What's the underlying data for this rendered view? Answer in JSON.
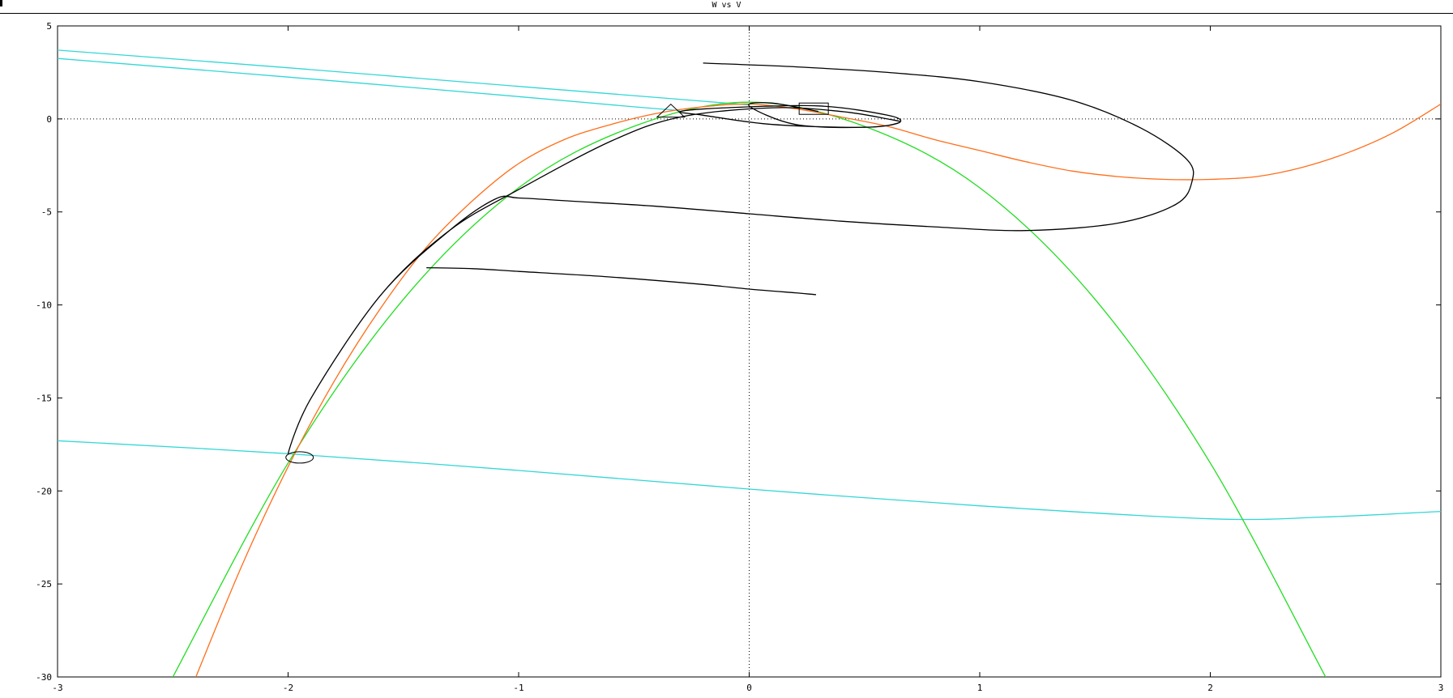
{
  "window": {
    "title": "W vs V"
  },
  "chart_data": {
    "type": "line",
    "title": "W vs V",
    "xlabel": "",
    "ylabel": "",
    "xlim": [
      -3,
      3
    ],
    "ylim": [
      -30,
      5
    ],
    "xticks": [
      -3,
      -2,
      -1,
      0,
      1,
      2,
      3
    ],
    "yticks": [
      5,
      0,
      -5,
      -10,
      -15,
      -20,
      -25,
      -30
    ],
    "grid": false,
    "zero_lines": true,
    "series": [
      {
        "color": "#33d6d6",
        "style": "line",
        "x": [
          -3,
          -2,
          -1,
          -0.5,
          -0.2,
          0.0
        ],
        "y": [
          3.7,
          2.75,
          1.75,
          1.25,
          0.95,
          0.75
        ]
      },
      {
        "color": "#33d6d6",
        "style": "line",
        "x": [
          -3,
          -2,
          -1,
          -0.5,
          -0.3
        ],
        "y": [
          3.25,
          2.25,
          1.2,
          0.65,
          0.45
        ]
      },
      {
        "color": "#33d6d6",
        "style": "line",
        "x": [
          -3,
          -2,
          -1,
          0,
          1,
          2,
          2.5,
          3
        ],
        "y": [
          -17.3,
          -18.0,
          -18.9,
          -19.9,
          -20.8,
          -21.5,
          -21.4,
          -21.1
        ]
      },
      {
        "color": "#22dd22",
        "style": "line",
        "x": [
          -2.5,
          -2,
          -1.5,
          -1,
          -0.5,
          0,
          0.5,
          1,
          1.5,
          2,
          2.5
        ],
        "y": [
          -30,
          -18.5,
          -9.7,
          -3.7,
          -0.4,
          0.9,
          -0.4,
          -3.7,
          -9.7,
          -18.5,
          -30
        ]
      },
      {
        "color": "#ff6e1a",
        "style": "line",
        "x": [
          -2.4,
          -2.2,
          -2,
          -1.8,
          -1.6,
          -1.4,
          -1.2,
          -1,
          -0.8,
          -0.6,
          -0.4,
          -0.2,
          0,
          0.2,
          0.4,
          0.6,
          0.8,
          1,
          1.2,
          1.4,
          1.6,
          1.8,
          2,
          2.2,
          2.4,
          2.6,
          2.8,
          3
        ],
        "y": [
          -30,
          -24,
          -18.7,
          -14.1,
          -10.2,
          -6.9,
          -4.4,
          -2.4,
          -1.1,
          -0.3,
          0.3,
          0.65,
          0.8,
          0.55,
          0.1,
          -0.4,
          -1.1,
          -1.7,
          -2.3,
          -2.8,
          -3.1,
          -3.25,
          -3.25,
          -3.1,
          -2.6,
          -1.8,
          -0.7,
          0.8
        ]
      },
      {
        "color": "#000000",
        "style": "line",
        "x": [
          -0.2,
          0.2,
          0.6,
          1.0,
          1.4,
          1.7,
          1.9,
          1.92,
          1.85,
          1.6,
          1.2,
          0.8,
          0.4,
          0.0,
          -0.4,
          -0.8,
          -1.0,
          -1.1,
          -1.3,
          -1.6,
          -1.9,
          -2.0,
          -1.9,
          -1.6,
          -1.3,
          -1.0,
          -0.6,
          -0.3,
          0.1,
          0.4,
          0.6,
          0.65,
          0.5,
          0.1,
          -0.2,
          -0.3,
          -0.1,
          0.3,
          0.6,
          0.65,
          0.5,
          0.2,
          0.0,
          0.1,
          0.3
        ],
        "y": [
          3.0,
          2.8,
          2.5,
          2.0,
          1.0,
          -0.5,
          -2.2,
          -3.4,
          -4.6,
          -5.6,
          -6.0,
          -5.8,
          -5.5,
          -5.1,
          -4.7,
          -4.4,
          -4.25,
          -4.3,
          -6.0,
          -9.5,
          -15.0,
          -18.0,
          -15.0,
          -9.5,
          -6.0,
          -3.8,
          -1.2,
          0.1,
          0.6,
          0.4,
          0.0,
          -0.2,
          -0.45,
          -0.3,
          0.2,
          0.4,
          0.6,
          0.7,
          0.2,
          -0.2,
          -0.45,
          -0.3,
          0.7,
          0.85,
          0.4
        ]
      },
      {
        "color": "#000000",
        "style": "line",
        "x": [
          -1.4,
          -1.2,
          -1.0,
          -0.6,
          -0.2,
          0.0,
          0.2,
          0.29
        ],
        "y": [
          -8.0,
          -8.05,
          -8.2,
          -8.5,
          -8.9,
          -9.15,
          -9.35,
          -9.45
        ]
      }
    ],
    "markers": [
      {
        "shape": "triangle",
        "x": -0.34,
        "y": 0.4
      },
      {
        "shape": "square",
        "x": 0.28,
        "y": 0.55
      },
      {
        "shape": "circle",
        "x": -1.95,
        "y": -18.2
      }
    ]
  }
}
